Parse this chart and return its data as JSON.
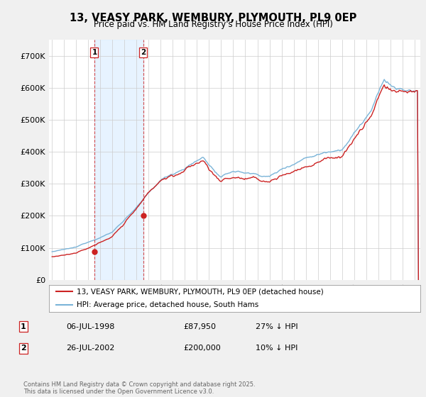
{
  "title": "13, VEASY PARK, WEMBURY, PLYMOUTH, PL9 0EP",
  "subtitle": "Price paid vs. HM Land Registry's House Price Index (HPI)",
  "ylim": [
    0,
    750000
  ],
  "yticks": [
    0,
    100000,
    200000,
    300000,
    400000,
    500000,
    600000,
    700000
  ],
  "yticklabels": [
    "£0",
    "£100K",
    "£200K",
    "£300K",
    "£400K",
    "£500K",
    "£600K",
    "£700K"
  ],
  "hpi_color": "#7ab4d8",
  "price_color": "#cc2222",
  "vline_color": "#cc2222",
  "shade_color": "#ddeeff",
  "transaction1": {
    "date_num": 1998.51,
    "price": 87950,
    "label": "1",
    "date_str": "06-JUL-1998",
    "pct": "27% ↓ HPI"
  },
  "transaction2": {
    "date_num": 2002.56,
    "price": 200000,
    "label": "2",
    "date_str": "26-JUL-2002",
    "pct": "10% ↓ HPI"
  },
  "legend_price_label": "13, VEASY PARK, WEMBURY, PLYMOUTH, PL9 0EP (detached house)",
  "legend_hpi_label": "HPI: Average price, detached house, South Hams",
  "footer": "Contains HM Land Registry data © Crown copyright and database right 2025.\nThis data is licensed under the Open Government Licence v3.0.",
  "background_color": "#f0f0f0",
  "plot_background": "#ffffff",
  "xlim_left": 1994.75,
  "xlim_right": 2025.5
}
